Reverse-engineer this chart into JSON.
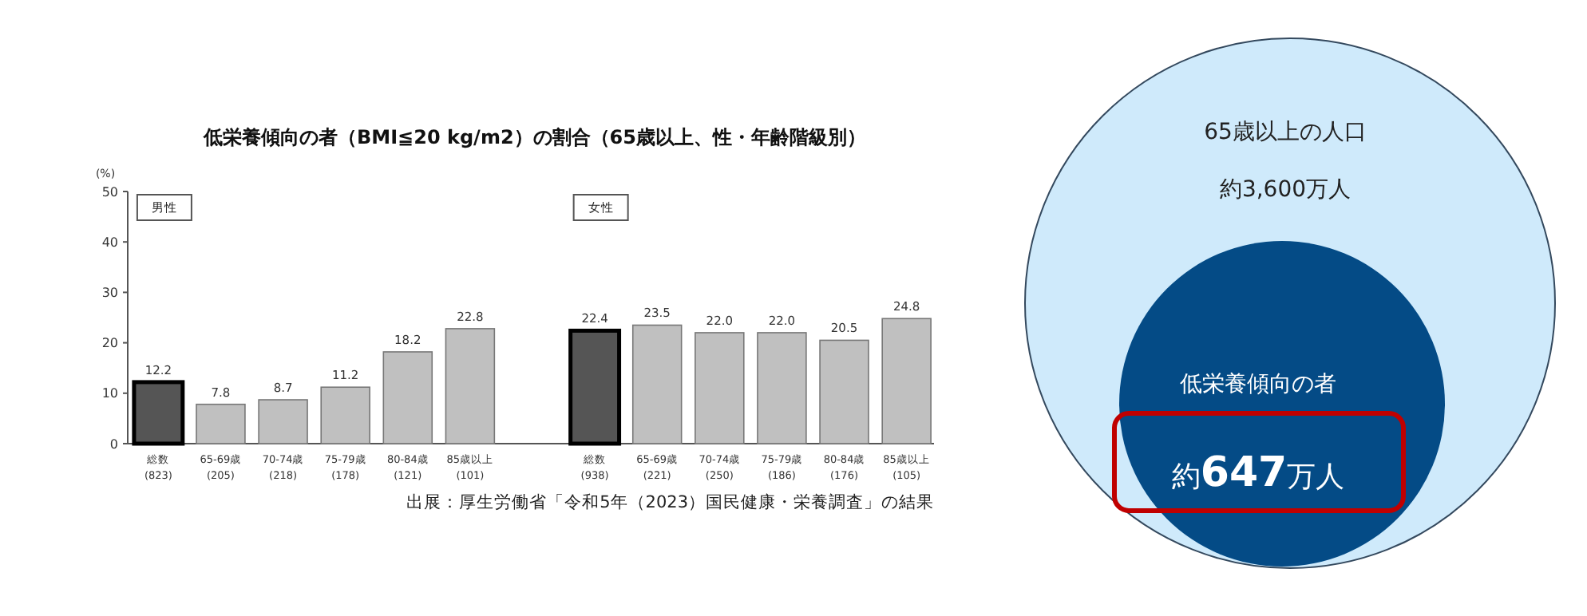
{
  "chart_data": [
    {
      "type": "bar",
      "title": "低栄養傾向の者（BMI≦20 kg/m2）の割合（65歳以上、性・年齢階級別）",
      "ylabel": "(%)",
      "categories": [
        "総数 (823)",
        "65-69歳 (205)",
        "70-74歳 (218)",
        "75-79歳 (178)",
        "80-84歳 (121)",
        "85歳以上 (101)",
        null,
        "総数 (938)",
        "65-69歳 (221)",
        "70-74歳 (250)",
        "75-79歳 (186)",
        "80-84歳 (176)",
        "85歳以上 (105)"
      ],
      "values": [
        12.2,
        7.8,
        8.7,
        11.2,
        18.2,
        22.8,
        null,
        22.4,
        23.5,
        22.0,
        22.0,
        20.5,
        24.8
      ],
      "value_labels": [
        "12.2",
        "7.8",
        "8.7",
        "11.2",
        "18.2",
        "22.8",
        null,
        "22.4",
        "23.5",
        "22.0",
        "22.0",
        "20.5",
        "24.8"
      ],
      "colors": [
        "#555555",
        "#c0c0c0",
        "#c0c0c0",
        "#c0c0c0",
        "#c0c0c0",
        "#c0c0c0",
        null,
        "#555555",
        "#c0c0c0",
        "#c0c0c0",
        "#c0c0c0",
        "#c0c0c0",
        "#c0c0c0"
      ],
      "ylim": [
        0,
        50
      ],
      "yticks": [
        0,
        10,
        20,
        30,
        40,
        50
      ],
      "grid": false,
      "annotations": [
        "男性",
        "女性",
        "出展：厚生労働省「令和5年（2023）国民健康・栄養調査」の結果"
      ]
    },
    {
      "type": "other",
      "annotations": [
        "65歳以上の人口",
        "約3,600万人",
        "低栄養傾向の者",
        "約647万人"
      ]
    }
  ]
}
